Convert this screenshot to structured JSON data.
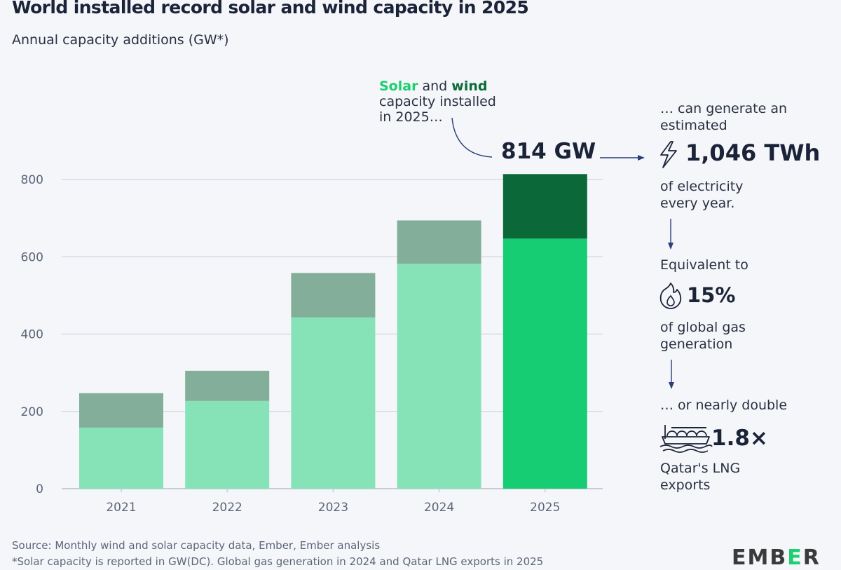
{
  "header": {
    "title": "World installed record solar and wind capacity in 2025",
    "subtitle": "Annual capacity additions (GW*)"
  },
  "annotations": {
    "intro_solar": "Solar",
    "intro_and": " and ",
    "intro_wind": "wind",
    "intro_line2": "capacity installed",
    "intro_line3": "in 2025…",
    "total_value": "814 GW",
    "generate_line1": "… can generate an",
    "generate_line2": "estimated",
    "twh_value": "1,046 TWh",
    "electricity_line1": "of electricity",
    "electricity_line2": "every year.",
    "equivalent_label": "Equivalent to",
    "gas_value": "15%",
    "gas_line1": "of global gas",
    "gas_line2": "generation",
    "double_label": "… or nearly double",
    "lng_value": "1.8×",
    "lng_line1": "Qatar's LNG",
    "lng_line2": "exports",
    "icons": [
      "lightning-icon",
      "flame-icon",
      "lng-ship-icon"
    ]
  },
  "footer": {
    "source": "Source: Monthly wind and solar capacity data, Ember, Ember analysis",
    "note": "*Solar capacity is reported in GW(DC). Global gas generation in 2024 and Qatar LNG exports in 2025"
  },
  "logo": {
    "text_a": "EMB",
    "text_b": "E",
    "text_c": "R"
  },
  "colors": {
    "solar_past": "#86e3b7",
    "wind_past": "#83ae99",
    "solar_2025": "#17cd73",
    "wind_2025": "#0b6838",
    "grid": "#d7dae3",
    "arrow": "#2a3f7a"
  },
  "chart_data": {
    "type": "bar",
    "stacked": true,
    "title": "World installed record solar and wind capacity in 2025",
    "subtitle": "Annual capacity additions (GW*)",
    "xlabel": "",
    "ylabel": "GW",
    "categories": [
      "2021",
      "2022",
      "2023",
      "2024",
      "2025"
    ],
    "series": [
      {
        "name": "Solar",
        "values": [
          158,
          227,
          443,
          582,
          647
        ]
      },
      {
        "name": "Wind",
        "values": [
          89,
          78,
          115,
          112,
          167
        ]
      }
    ],
    "totals": [
      247,
      305,
      558,
      694,
      814
    ],
    "ylim": [
      0,
      800
    ],
    "yticks": [
      0,
      200,
      400,
      600,
      800
    ],
    "grid": true,
    "highlight_category": "2025"
  }
}
